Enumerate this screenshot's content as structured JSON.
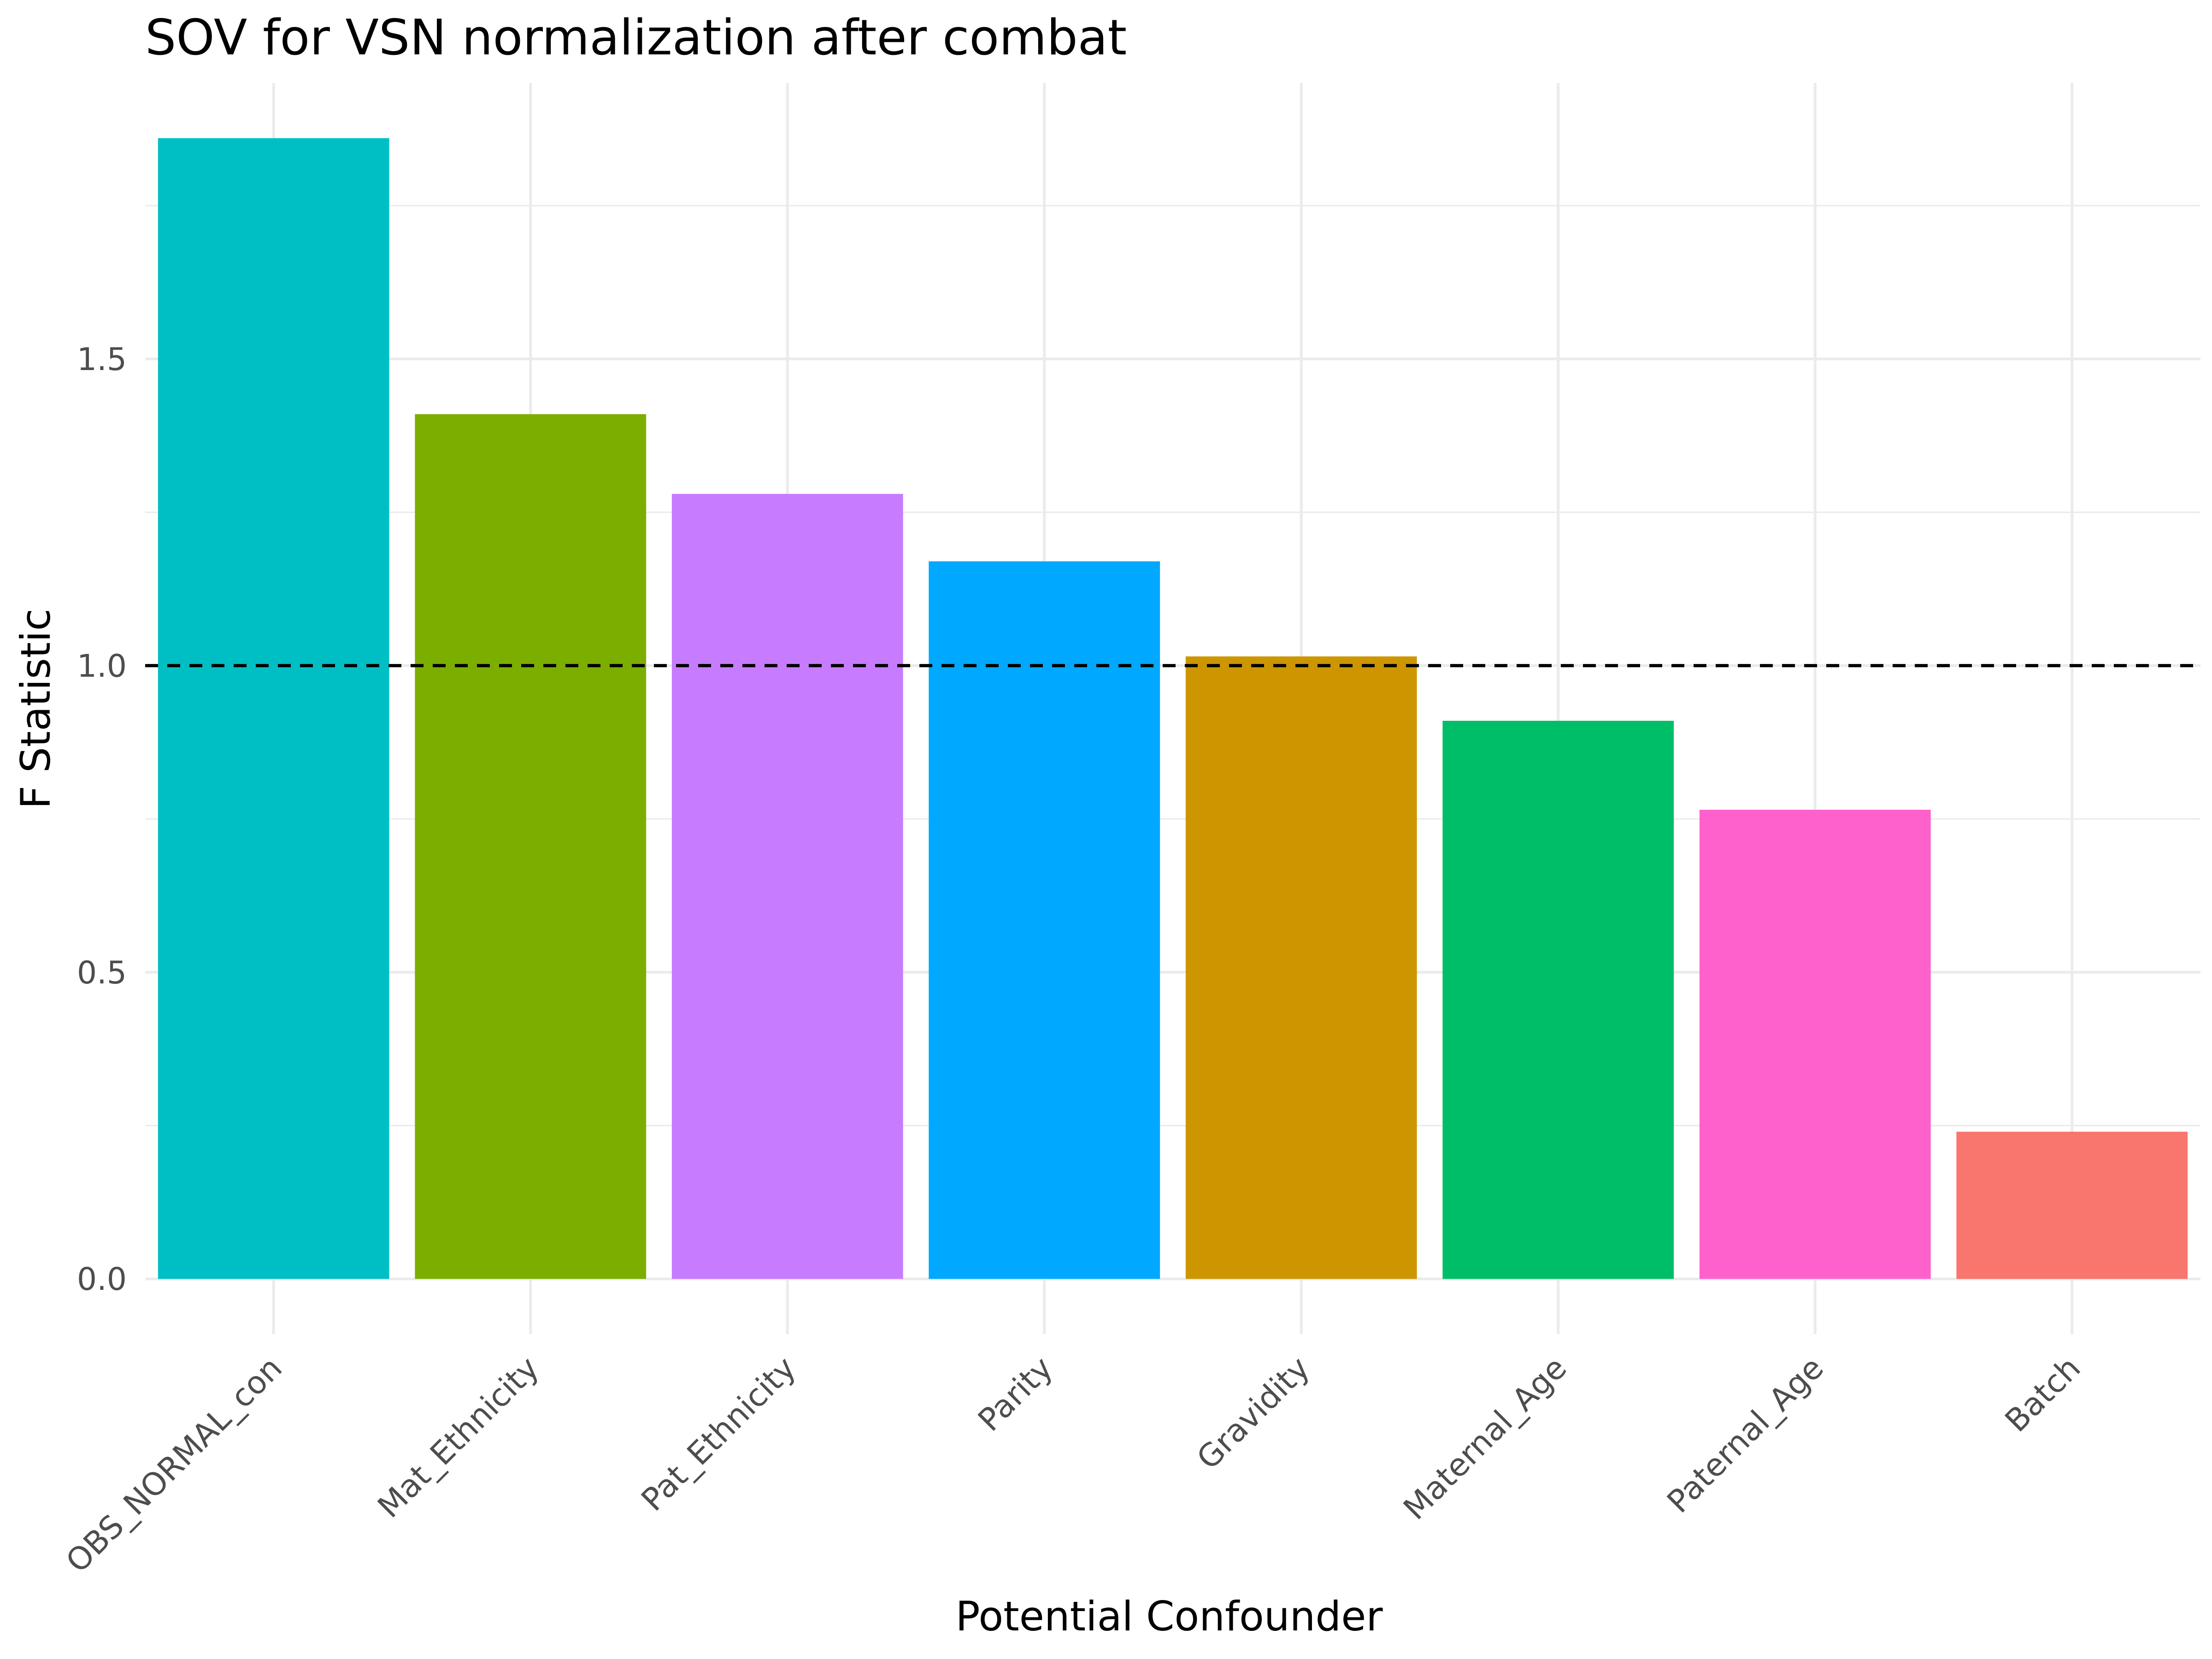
{
  "chart_data": {
    "type": "bar",
    "title": "SOV for VSN normalization after combat",
    "xlabel": "Potential Confounder",
    "ylabel": "F Statistic",
    "categories": [
      "OBS_NORMAL_con",
      "Mat_Ethnicity",
      "Pat_Ethnicity",
      "Parity",
      "Gravidity",
      "Maternal_Age",
      "Paternal_Age",
      "Batch"
    ],
    "values": [
      1.86,
      1.41,
      1.28,
      1.17,
      1.015,
      0.91,
      0.765,
      0.24
    ],
    "colors": [
      "#00BFC4",
      "#7CAE00",
      "#C77CFF",
      "#00A9FF",
      "#CD9600",
      "#00BE67",
      "#FF61CC",
      "#F8766D"
    ],
    "ylim": [
      -0.09,
      1.95
    ],
    "yticks": [
      0.0,
      0.5,
      1.0,
      1.5
    ],
    "ytick_labels": [
      "0.0",
      "0.5",
      "1.0",
      "1.5"
    ],
    "reference_line": {
      "y": 1.0,
      "style": "dashed",
      "color": "#000000"
    },
    "grid": true,
    "legend": "none"
  }
}
